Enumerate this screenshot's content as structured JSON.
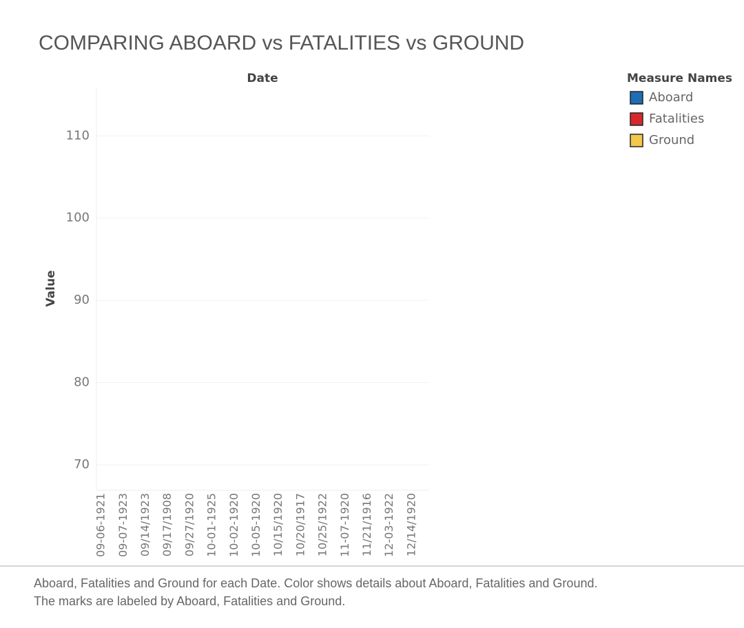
{
  "chart_data": {
    "type": "line",
    "title": "COMPARING ABOARD vs FATALITIES vs GROUND",
    "x_label": "Date",
    "y_label": "Value",
    "legend_title": "Measure Names",
    "categories": [
      "09-06-1921",
      "09-07-1923",
      "09/14/1923",
      "09/17/1908",
      "09/27/1920",
      "10-01-1925",
      "10-02-1920",
      "10-05-1920",
      "10/15/1920",
      "10/20/1917",
      "10/25/1922",
      "11-07-1920",
      "11/21/1916",
      "12-03-1922",
      "12/14/1920"
    ],
    "series": [
      {
        "name": "Aboard",
        "color": "#1f6db2",
        "values": [
          null,
          null,
          null,
          null,
          null,
          null,
          null,
          null,
          null,
          null,
          null,
          null,
          null,
          null,
          null
        ]
      },
      {
        "name": "Fatalities",
        "color": "#d62a2a",
        "values": [
          null,
          null,
          null,
          null,
          null,
          null,
          null,
          null,
          null,
          null,
          null,
          null,
          null,
          null,
          null
        ]
      },
      {
        "name": "Ground",
        "color": "#f3c84b",
        "values": [
          null,
          null,
          null,
          null,
          null,
          null,
          null,
          null,
          null,
          null,
          null,
          null,
          null,
          null,
          null
        ]
      }
    ],
    "ylim": [
      66.9,
      115.8
    ],
    "yticks": [
      70,
      80,
      90,
      100,
      110
    ],
    "grid": true,
    "caption": "Aboard, Fatalities and Ground for each Date.  Color shows details about Aboard, Fatalities and Ground.  The marks are labeled by Aboard, Fatalities and Ground."
  }
}
